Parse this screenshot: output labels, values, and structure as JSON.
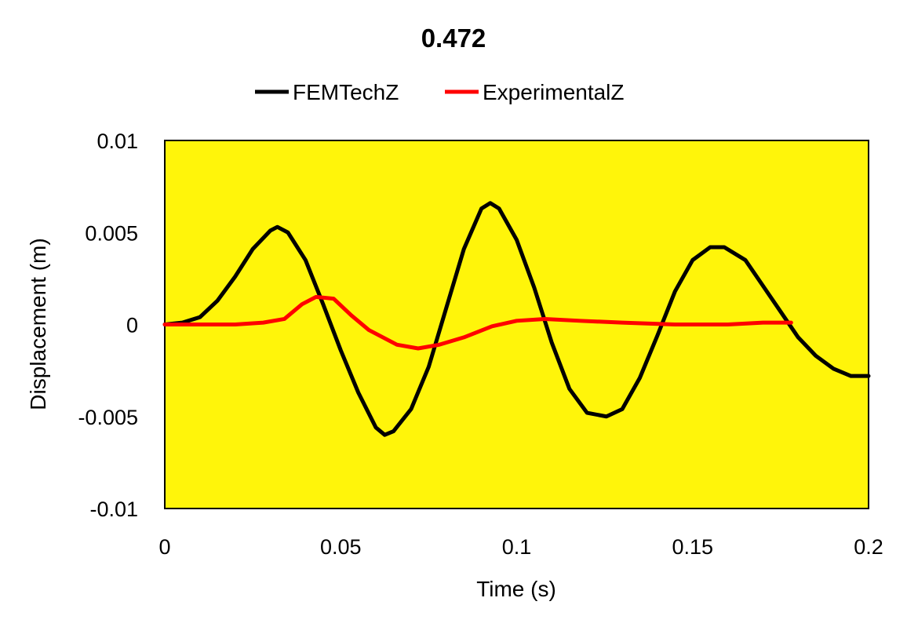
{
  "chart_data": {
    "type": "line",
    "title": "0.472",
    "xlabel": "Time (s)",
    "ylabel": "Displacement (m)",
    "xlim": [
      0,
      0.2
    ],
    "ylim": [
      -0.01,
      0.01
    ],
    "x_ticks": [
      "0",
      "0.05",
      "0.1",
      "0.15",
      "0.2"
    ],
    "y_ticks": [
      "0.01",
      "0.005",
      "0",
      "-0.005",
      "-0.01"
    ],
    "x_tick_values": [
      0,
      0.05,
      0.1,
      0.15,
      0.2
    ],
    "y_tick_values": [
      0.01,
      0.005,
      0,
      -0.005,
      -0.01
    ],
    "grid": false,
    "legend_position": "top",
    "plot_background": "#FFF50A",
    "series": [
      {
        "name": "FEMTechZ",
        "color": "#000000",
        "points": [
          [
            0,
            0
          ],
          [
            0.005,
            0.0001
          ],
          [
            0.01,
            0.0004
          ],
          [
            0.015,
            0.0013
          ],
          [
            0.02,
            0.0026
          ],
          [
            0.025,
            0.0041
          ],
          [
            0.03,
            0.0051
          ],
          [
            0.032,
            0.0053
          ],
          [
            0.035,
            0.005
          ],
          [
            0.04,
            0.0035
          ],
          [
            0.045,
            0.0011
          ],
          [
            0.05,
            -0.0014
          ],
          [
            0.055,
            -0.0037
          ],
          [
            0.06,
            -0.0056
          ],
          [
            0.0625,
            -0.006
          ],
          [
            0.065,
            -0.0058
          ],
          [
            0.07,
            -0.0046
          ],
          [
            0.075,
            -0.0023
          ],
          [
            0.08,
            0.0009
          ],
          [
            0.085,
            0.0041
          ],
          [
            0.09,
            0.0063
          ],
          [
            0.0925,
            0.0066
          ],
          [
            0.095,
            0.0063
          ],
          [
            0.1,
            0.0046
          ],
          [
            0.105,
            0.002
          ],
          [
            0.11,
            -0.001
          ],
          [
            0.115,
            -0.0035
          ],
          [
            0.12,
            -0.0048
          ],
          [
            0.1255,
            -0.005
          ],
          [
            0.13,
            -0.0046
          ],
          [
            0.135,
            -0.0029
          ],
          [
            0.14,
            -0.0006
          ],
          [
            0.145,
            0.0018
          ],
          [
            0.15,
            0.0035
          ],
          [
            0.155,
            0.0042
          ],
          [
            0.159,
            0.0042
          ],
          [
            0.165,
            0.0035
          ],
          [
            0.17,
            0.0021
          ],
          [
            0.175,
            0.0007
          ],
          [
            0.18,
            -0.0007
          ],
          [
            0.185,
            -0.0017
          ],
          [
            0.19,
            -0.0024
          ],
          [
            0.195,
            -0.0028
          ],
          [
            0.2,
            -0.0028
          ]
        ]
      },
      {
        "name": "ExperimentalZ",
        "color": "#FF0000",
        "points": [
          [
            0,
            0
          ],
          [
            0.01,
            0
          ],
          [
            0.02,
            0
          ],
          [
            0.028,
            0.0001
          ],
          [
            0.034,
            0.0003
          ],
          [
            0.039,
            0.0011
          ],
          [
            0.043,
            0.0015
          ],
          [
            0.048,
            0.0014
          ],
          [
            0.053,
            0.0005
          ],
          [
            0.058,
            -0.0003
          ],
          [
            0.066,
            -0.0011
          ],
          [
            0.072,
            -0.0013
          ],
          [
            0.078,
            -0.0011
          ],
          [
            0.085,
            -0.0007
          ],
          [
            0.093,
            -0.0001
          ],
          [
            0.1,
            0.0002
          ],
          [
            0.108,
            0.0003
          ],
          [
            0.118,
            0.0002
          ],
          [
            0.13,
            0.0001
          ],
          [
            0.145,
            0
          ],
          [
            0.16,
            0
          ],
          [
            0.17,
            0.0001
          ],
          [
            0.178,
            0.0001
          ]
        ]
      }
    ]
  }
}
